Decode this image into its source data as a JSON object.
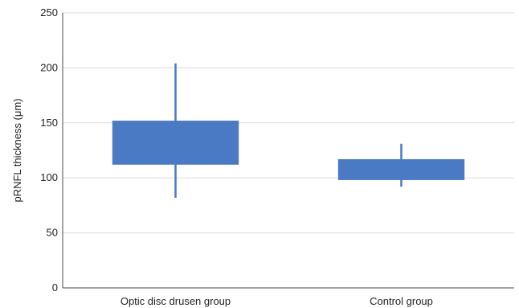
{
  "chart_data": {
    "type": "box",
    "title": "",
    "xlabel": "",
    "ylabel": "pRNFL thickness (μm)",
    "ylim": [
      0,
      250
    ],
    "yticks": [
      0,
      50,
      100,
      150,
      200,
      250
    ],
    "grid": true,
    "legend": "none",
    "color": "#4a7ac3",
    "categories": [
      "Optic disc drusen group",
      "Control group"
    ],
    "boxes": [
      {
        "category": "Optic disc drusen group",
        "whisker_low": 82,
        "q1": 112,
        "q3": 152,
        "whisker_high": 204
      },
      {
        "category": "Control group",
        "whisker_low": 92,
        "q1": 98,
        "q3": 117,
        "whisker_high": 131
      }
    ]
  }
}
